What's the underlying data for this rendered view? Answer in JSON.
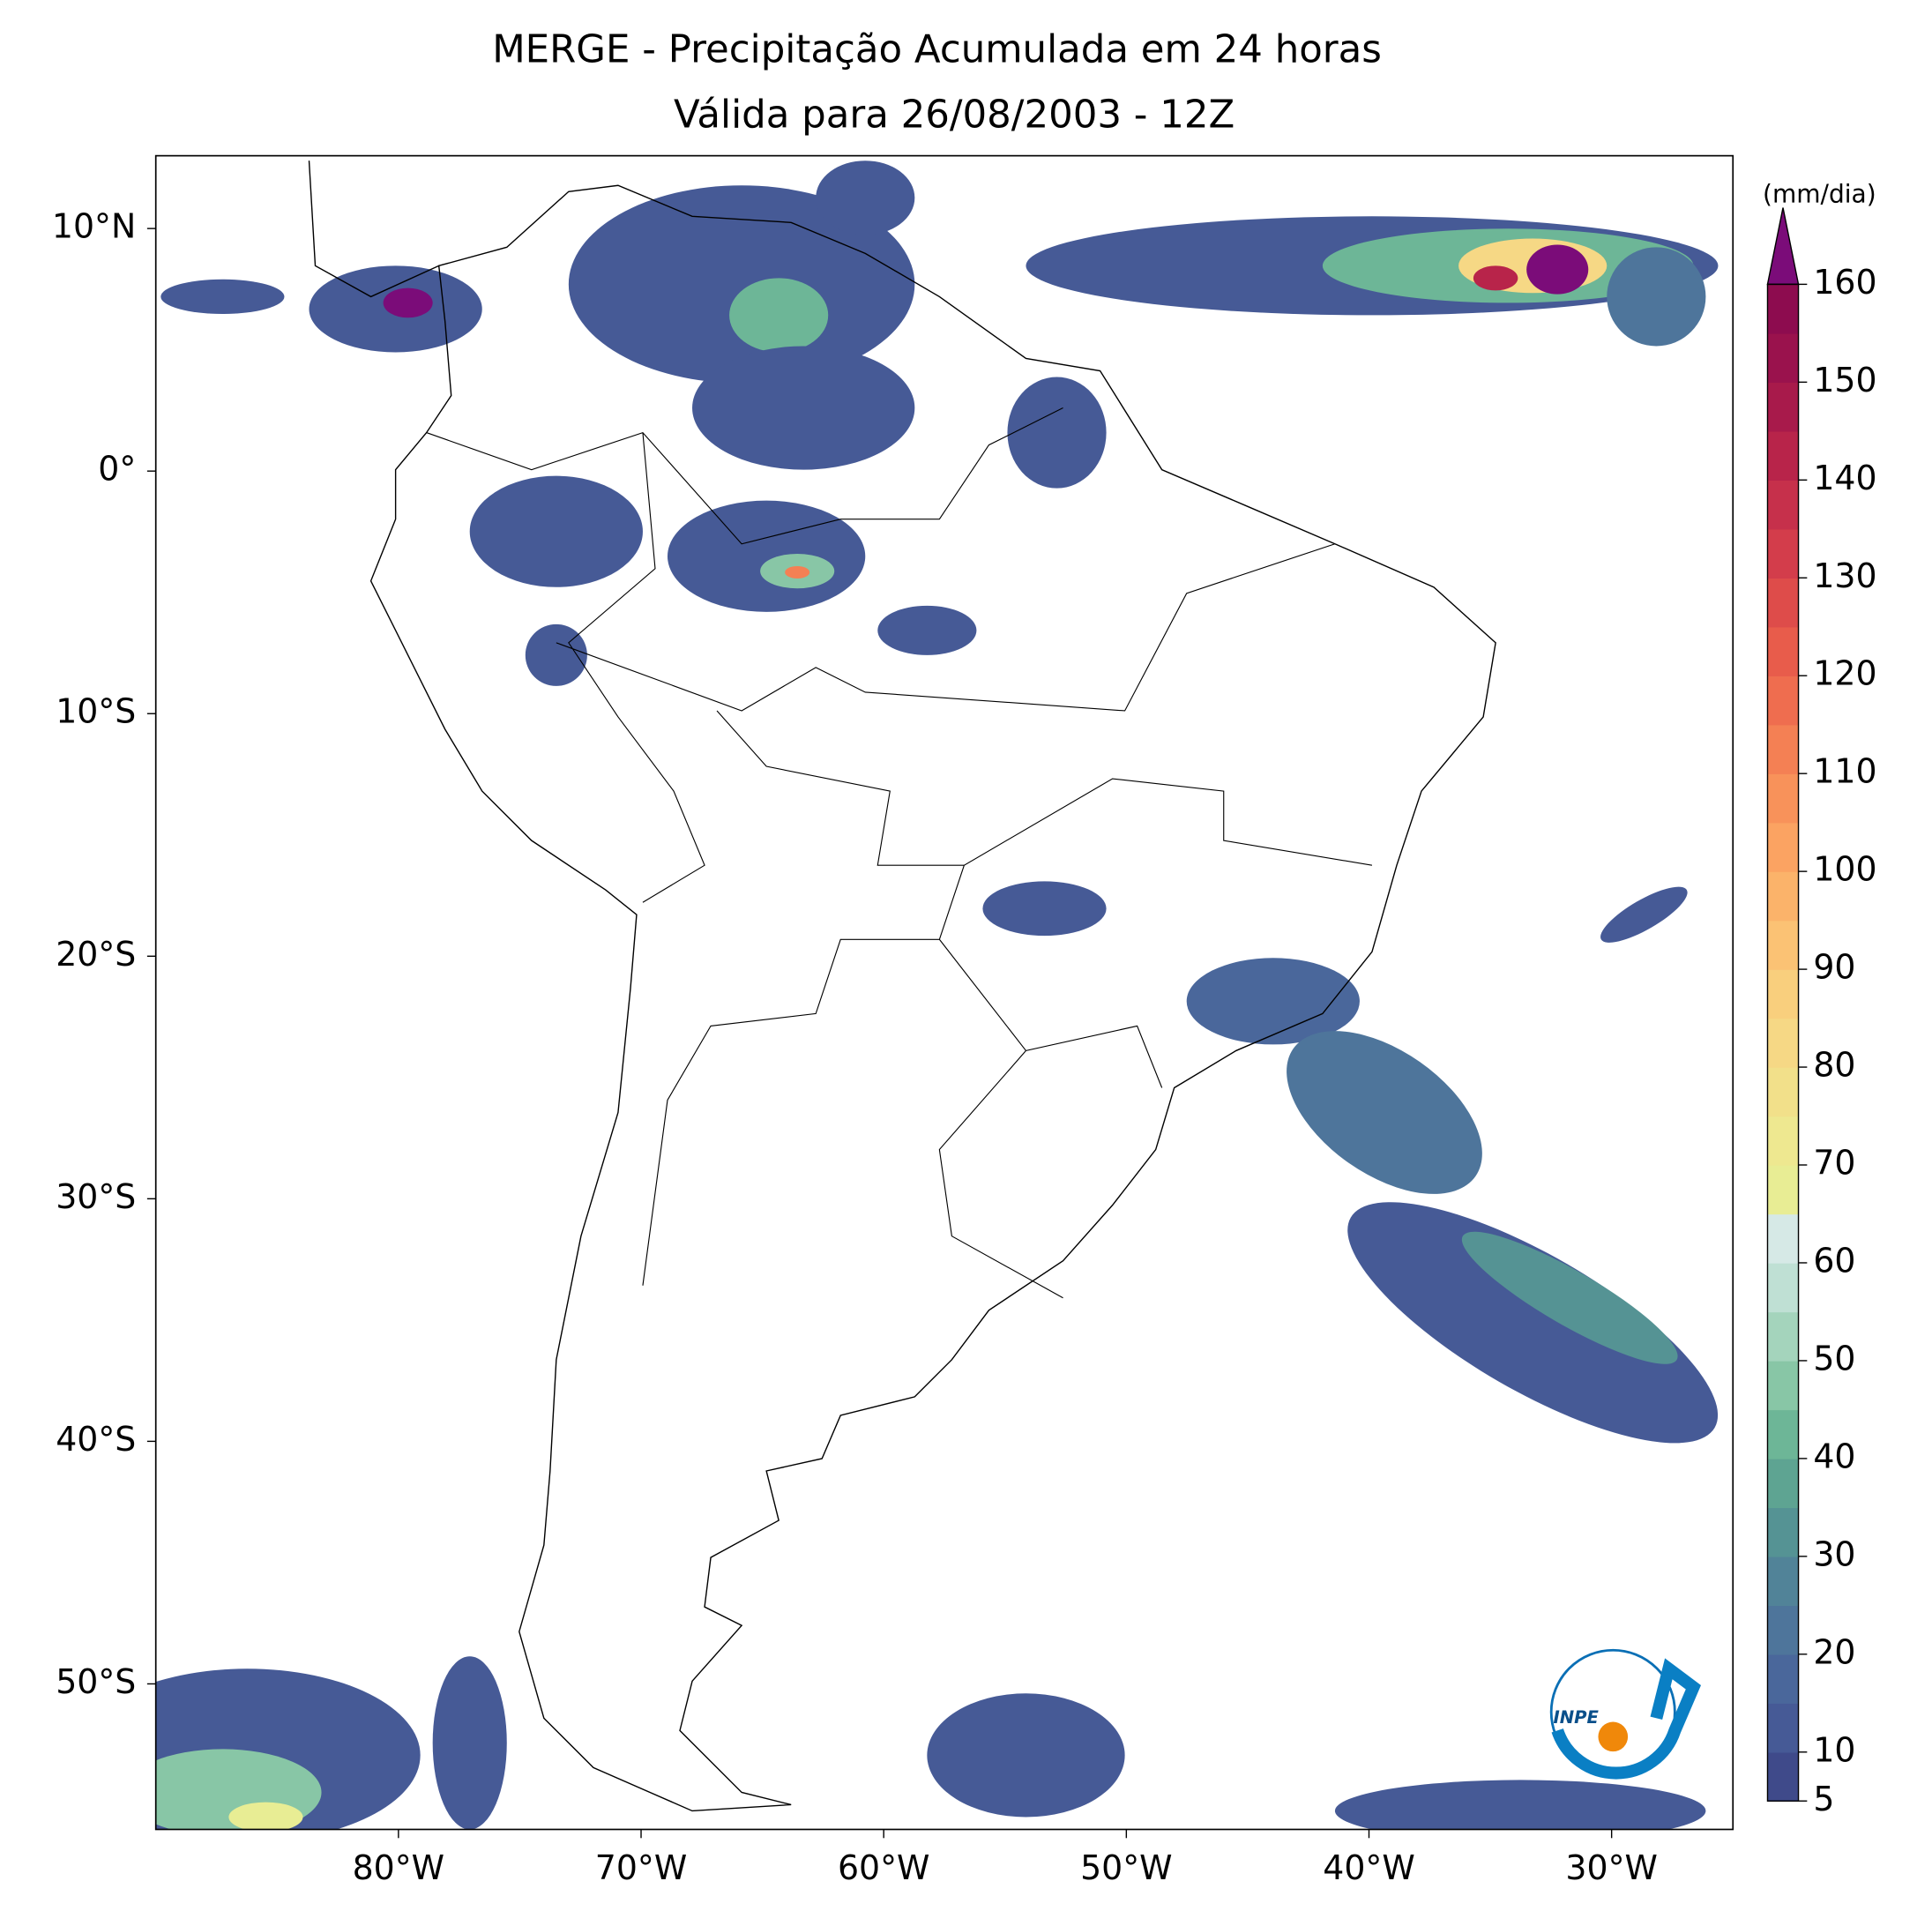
{
  "header": {
    "title": "MERGE - Precipitação Acumulada em 24 horas",
    "subtitle": "Válida para 26/08/2003 - 12Z"
  },
  "map": {
    "xlim": [
      -90,
      -25
    ],
    "ylim": [
      -56,
      13
    ],
    "xticks": [
      {
        "value": -80,
        "label": "80°W"
      },
      {
        "value": -70,
        "label": "70°W"
      },
      {
        "value": -60,
        "label": "60°W"
      },
      {
        "value": -50,
        "label": "50°W"
      },
      {
        "value": -40,
        "label": "40°W"
      },
      {
        "value": -30,
        "label": "30°W"
      }
    ],
    "yticks": [
      {
        "value": 10,
        "label": "10°N"
      },
      {
        "value": 0,
        "label": "0°"
      },
      {
        "value": -10,
        "label": "10°S"
      },
      {
        "value": -20,
        "label": "20°S"
      },
      {
        "value": -30,
        "label": "30°S"
      },
      {
        "value": -40,
        "label": "40°S"
      },
      {
        "value": -50,
        "label": "50°S"
      }
    ]
  },
  "colorbar": {
    "label": "(mm/dia)",
    "lim": [
      5,
      160
    ],
    "ticks": [
      5,
      10,
      20,
      30,
      40,
      50,
      60,
      70,
      80,
      90,
      100,
      110,
      120,
      130,
      140,
      150,
      160
    ],
    "colors": [
      "#3f4a8a",
      "#465a96",
      "#4a679b",
      "#4e759b",
      "#518398",
      "#559394",
      "#5ea492",
      "#6db697",
      "#88c6a6",
      "#a4d4bc",
      "#bfe0d4",
      "#d6e9e6",
      "#e8ed94",
      "#eee890",
      "#f2e08a",
      "#f6d885",
      "#f9cf7d",
      "#fbc274",
      "#fbb36a",
      "#fba362",
      "#f8925a",
      "#f48054",
      "#ef6d4f",
      "#e85c4b",
      "#de4c4a",
      "#d33d4b",
      "#c6304b",
      "#b8244a",
      "#a81a4b",
      "#9a124d",
      "#8d0c4f"
    ],
    "over_color": "#7b0c79"
  },
  "logo": {
    "text": "INPE"
  }
}
